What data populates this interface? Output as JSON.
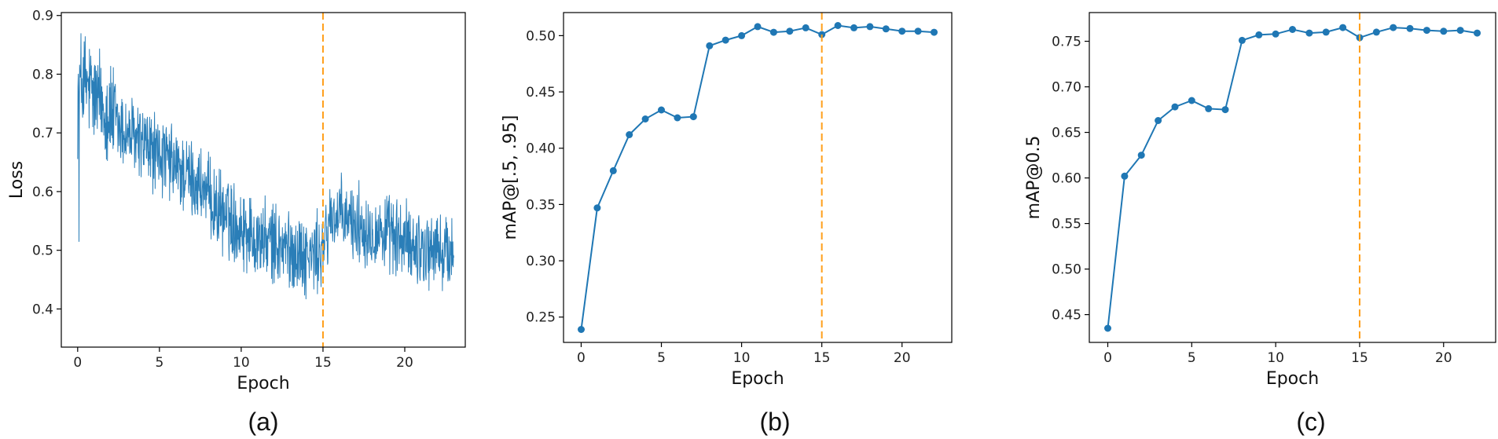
{
  "chart_data": [
    {
      "panel_label": "(a)",
      "type": "line",
      "xlabel": "Epoch",
      "ylabel": "Loss",
      "xlim": [
        -1.0,
        23.7
      ],
      "ylim": [
        0.335,
        0.905
      ],
      "xticks": [
        0,
        5,
        10,
        15,
        20
      ],
      "yticks": [
        0.4,
        0.5,
        0.6,
        0.7,
        0.8,
        0.9
      ],
      "ytick_labels": [
        "0.4",
        "0.5",
        "0.6",
        "0.7",
        "0.8",
        "0.9"
      ],
      "vline_x": 15,
      "markers": false,
      "noisy": true,
      "series": [
        {
          "x": [
            0,
            0.25,
            0.5,
            0.75,
            1,
            1.5,
            2,
            2.5,
            3,
            3.5,
            4,
            4.5,
            5,
            5.5,
            6,
            6.5,
            7,
            7.5,
            8,
            8.5,
            9,
            9.5,
            10,
            10.5,
            11,
            11.5,
            12,
            12.5,
            13,
            13.5,
            14,
            14.5,
            15,
            15.5,
            16,
            16.5,
            17,
            17.5,
            18,
            18.5,
            19,
            19.5,
            20,
            20.5,
            21,
            21.5,
            22,
            22.5,
            23
          ],
          "values": [
            0.76,
            0.79,
            0.78,
            0.77,
            0.76,
            0.75,
            0.73,
            0.71,
            0.7,
            0.69,
            0.68,
            0.67,
            0.66,
            0.65,
            0.64,
            0.63,
            0.62,
            0.61,
            0.59,
            0.57,
            0.56,
            0.55,
            0.54,
            0.53,
            0.52,
            0.515,
            0.51,
            0.505,
            0.5,
            0.495,
            0.49,
            0.49,
            0.5,
            0.56,
            0.555,
            0.55,
            0.545,
            0.54,
            0.535,
            0.53,
            0.525,
            0.52,
            0.515,
            0.51,
            0.505,
            0.5,
            0.5,
            0.495,
            0.49
          ]
        }
      ]
    },
    {
      "panel_label": "(b)",
      "type": "line",
      "xlabel": "Epoch",
      "ylabel": "mAP@[.5, .95]",
      "xlim": [
        -1.1,
        23.1
      ],
      "ylim": [
        0.2275,
        0.5205
      ],
      "xticks": [
        0,
        5,
        10,
        15,
        20
      ],
      "yticks": [
        0.25,
        0.3,
        0.35,
        0.4,
        0.45,
        0.5
      ],
      "ytick_labels": [
        "0.25",
        "0.30",
        "0.35",
        "0.40",
        "0.45",
        "0.50"
      ],
      "vline_x": 15,
      "markers": true,
      "noisy": false,
      "series": [
        {
          "x": [
            0,
            1,
            2,
            3,
            4,
            5,
            6,
            7,
            8,
            9,
            10,
            11,
            12,
            13,
            14,
            15,
            16,
            17,
            18,
            19,
            20,
            21,
            22
          ],
          "values": [
            0.239,
            0.347,
            0.38,
            0.412,
            0.426,
            0.434,
            0.427,
            0.428,
            0.491,
            0.496,
            0.5,
            0.508,
            0.503,
            0.504,
            0.507,
            0.501,
            0.509,
            0.507,
            0.508,
            0.506,
            0.504,
            0.504,
            0.503
          ]
        }
      ]
    },
    {
      "panel_label": "(c)",
      "type": "line",
      "xlabel": "Epoch",
      "ylabel": "mAP@0.5",
      "xlim": [
        -1.1,
        23.1
      ],
      "ylim": [
        0.4195,
        0.7815
      ],
      "xticks": [
        0,
        5,
        10,
        15,
        20
      ],
      "yticks": [
        0.45,
        0.5,
        0.55,
        0.6,
        0.65,
        0.7,
        0.75
      ],
      "ytick_labels": [
        "0.45",
        "0.50",
        "0.55",
        "0.60",
        "0.65",
        "0.70",
        "0.75"
      ],
      "vline_x": 15,
      "markers": true,
      "noisy": false,
      "series": [
        {
          "x": [
            0,
            1,
            2,
            3,
            4,
            5,
            6,
            7,
            8,
            9,
            10,
            11,
            12,
            13,
            14,
            15,
            16,
            17,
            18,
            19,
            20,
            21,
            22
          ],
          "values": [
            0.435,
            0.602,
            0.625,
            0.663,
            0.678,
            0.685,
            0.676,
            0.675,
            0.751,
            0.757,
            0.758,
            0.763,
            0.759,
            0.76,
            0.765,
            0.754,
            0.76,
            0.765,
            0.764,
            0.762,
            0.761,
            0.762,
            0.759
          ]
        }
      ]
    }
  ],
  "colors": {
    "line": "#1f77b4",
    "marker": "#1f77b4",
    "vline": "#ff9f1a",
    "axis": "#000000"
  }
}
